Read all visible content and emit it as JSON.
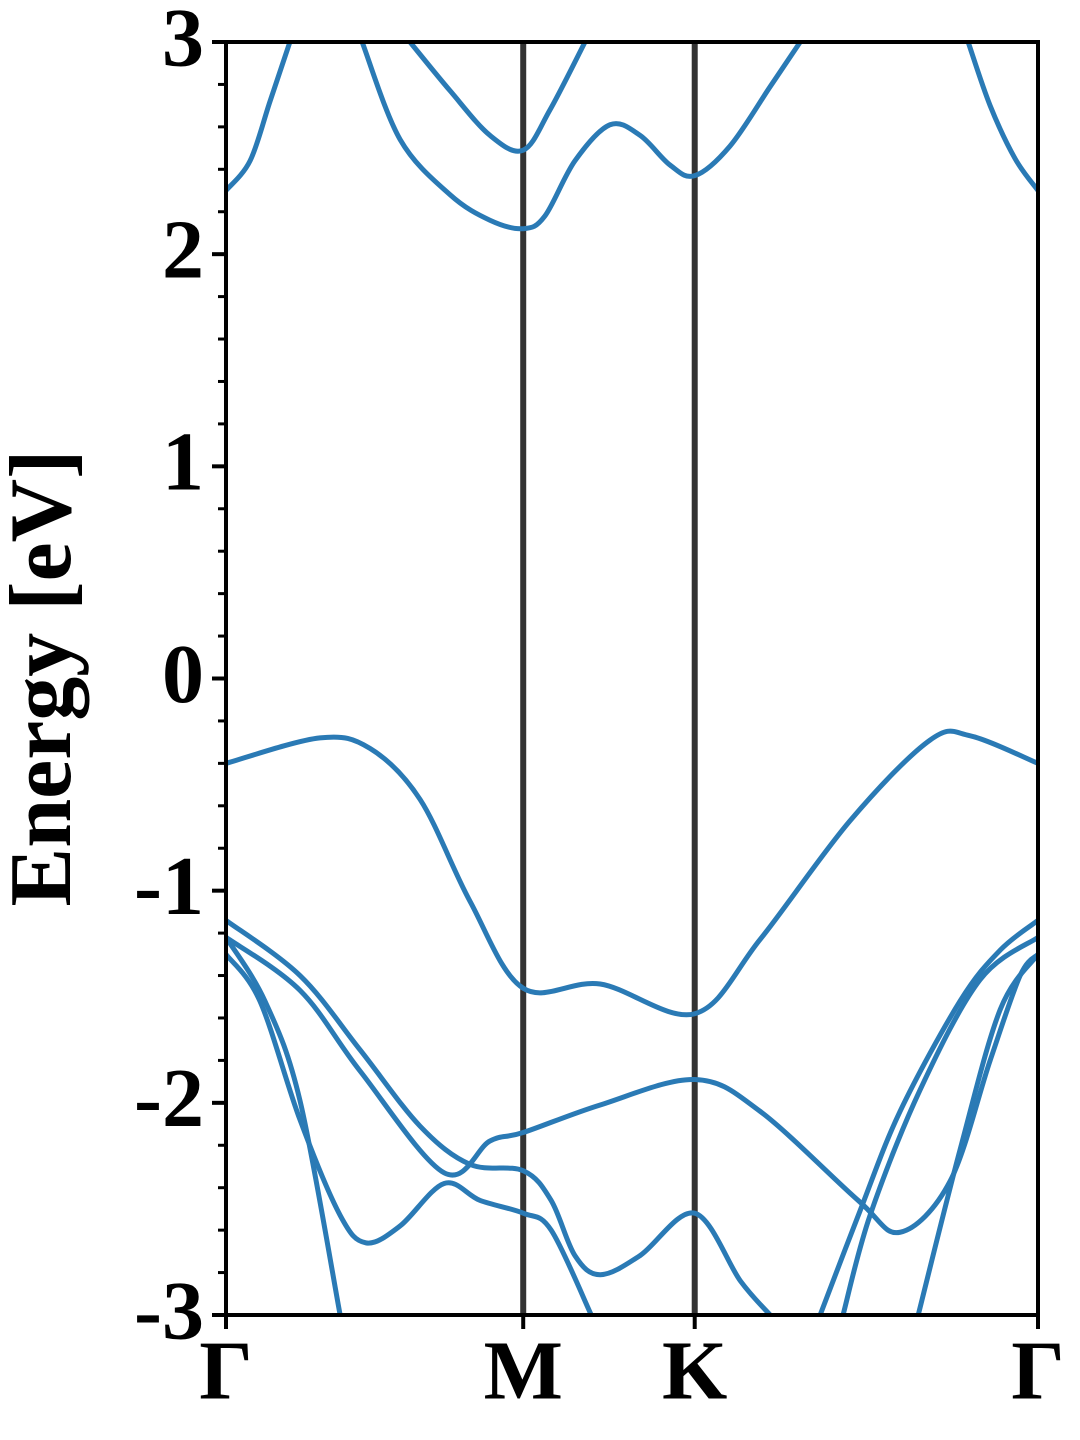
{
  "chart_data": {
    "type": "line",
    "y_label": "Energy [eV]",
    "xlim": [
      0,
      2.732
    ],
    "ylim": [
      -3,
      3
    ],
    "xticks": [
      {
        "value": 0,
        "label": "Γ"
      },
      {
        "value": 1,
        "label": "M"
      },
      {
        "value": 1.577,
        "label": "K"
      },
      {
        "value": 2.732,
        "label": "Γ"
      }
    ],
    "yticks": [
      {
        "value": -3,
        "label": "-3"
      },
      {
        "value": -2,
        "label": "-2"
      },
      {
        "value": -1,
        "label": "-1"
      },
      0,
      1,
      2,
      3
    ],
    "yminorticks": [
      -2.8,
      -2.6,
      -2.4,
      -2.2,
      -1.8,
      -1.6,
      -1.4,
      -1.2,
      -0.8,
      -0.6,
      -0.4,
      -0.2,
      0.2,
      0.4,
      0.6,
      0.8,
      1.2,
      1.4,
      1.6,
      1.8,
      2.2,
      2.4,
      2.6,
      2.8
    ],
    "vline_color": "#333333",
    "series": [
      {
        "color": "#2a7ab5",
        "x": [
          0,
          0.081,
          0.148,
          0.215,
          1.3,
          2.497,
          2.571,
          2.655,
          2.732
        ],
        "values": [
          2.3,
          2.44,
          2.72,
          3.0,
          null,
          3.0,
          2.7,
          2.45,
          2.3
        ]
      },
      {
        "color": "#2a7ab5",
        "x": [
          0.458,
          0.586,
          0.754,
          0.888,
          1,
          1.073,
          1.174,
          1.292,
          1.393,
          1.494,
          1.577,
          1.696,
          1.831,
          1.932
        ],
        "values": [
          3.0,
          2.54,
          2.28,
          2.16,
          2.12,
          2.18,
          2.44,
          2.61,
          2.56,
          2.42,
          2.37,
          2.51,
          2.79,
          3.0
        ]
      },
      {
        "color": "#2a7ab5",
        "x": [
          0.619,
          0.754,
          0.888,
          1,
          1.09,
          1.208
        ],
        "values": [
          3.0,
          2.77,
          2.56,
          2.49,
          2.68,
          3.0
        ]
      },
      {
        "color": "#2a7ab5",
        "x": [
          0,
          0.316,
          0.485,
          0.653,
          0.821,
          1,
          1.259,
          1.577,
          1.797,
          2.1,
          2.369,
          2.504,
          2.732
        ],
        "values": [
          -0.4,
          -0.28,
          -0.33,
          -0.57,
          -1.05,
          -1.46,
          -1.44,
          -1.58,
          -1.23,
          -0.67,
          -0.29,
          -0.27,
          -0.4
        ]
      },
      {
        "color": "#2a7ab5",
        "x": [
          0,
          0.249,
          0.451,
          0.653,
          0.821,
          1,
          1.094,
          1.174,
          1.259,
          1.393,
          1.577,
          1.731,
          1.831
        ],
        "values": [
          -1.14,
          -1.4,
          -1.75,
          -2.11,
          -2.29,
          -2.32,
          -2.46,
          -2.72,
          -2.81,
          -2.72,
          -2.52,
          -2.84,
          -3.0
        ]
      },
      {
        "color": "#2a7ab5",
        "x": [
          0,
          0.249,
          0.451,
          0.734,
          0.888,
          1,
          1.259,
          1.577,
          1.797,
          2.127,
          2.268,
          2.436,
          2.571,
          2.672,
          2.732
        ],
        "values": [
          -1.22,
          -1.47,
          -1.85,
          -2.33,
          -2.18,
          -2.14,
          -2.01,
          -1.89,
          -2.04,
          -2.46,
          -2.61,
          -2.37,
          -1.8,
          -1.4,
          -1.3
        ]
      },
      {
        "color": "#2a7ab5",
        "x": [
          0,
          0.131,
          0.249,
          0.384
        ],
        "values": [
          -1.22,
          -1.52,
          -1.99,
          -3.0
        ]
      },
      {
        "color": "#2a7ab5",
        "x": [
          0,
          0.114,
          0.249,
          0.384,
          0.471,
          0.586,
          0.734,
          0.855,
          1,
          1.094,
          1.229
        ],
        "values": [
          -1.3,
          -1.52,
          -2.08,
          -2.53,
          -2.66,
          -2.58,
          -2.38,
          -2.46,
          -2.52,
          -2.6,
          -3.0
        ]
      },
      {
        "color": "#2a7ab5",
        "x": [
          1.999,
          2.133,
          2.268,
          2.47,
          2.605,
          2.732
        ],
        "values": [
          -3.0,
          -2.51,
          -2.04,
          -1.52,
          -1.28,
          -1.14
        ]
      },
      {
        "color": "#2a7ab5",
        "x": [
          2.076,
          2.167,
          2.335,
          2.537,
          2.732
        ],
        "values": [
          -3.0,
          -2.53,
          -1.94,
          -1.42,
          -1.22
        ]
      },
      {
        "color": "#2a7ab5",
        "x": [
          2.329,
          2.47,
          2.605,
          2.732
        ],
        "values": [
          -3.0,
          -2.22,
          -1.56,
          -1.3
        ]
      }
    ]
  }
}
